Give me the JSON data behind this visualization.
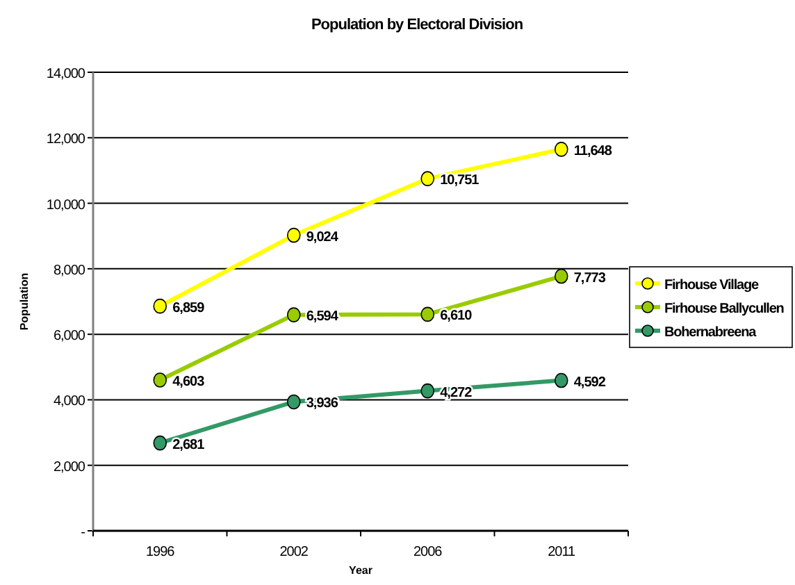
{
  "chart_data": {
    "type": "line",
    "title": "Population by Electoral Division",
    "xlabel": "Year",
    "ylabel": "Population",
    "categories": [
      "1996",
      "2002",
      "2006",
      "2011"
    ],
    "series": [
      {
        "name": "Firhouse Village",
        "color": "#ffff00",
        "values": [
          6859,
          9024,
          10751,
          11648
        ],
        "value_labels": [
          "6,859",
          "9,024",
          "10,751",
          "11,648"
        ]
      },
      {
        "name": "Firhouse Ballycullen",
        "color": "#99cc00",
        "values": [
          4603,
          6594,
          6610,
          7773
        ],
        "value_labels": [
          "4,603",
          "6,594",
          "6,610",
          "7,773"
        ]
      },
      {
        "name": "Bohernabreena",
        "color": "#339966",
        "values": [
          2681,
          3936,
          4272,
          4592
        ],
        "value_labels": [
          "2,681",
          "3,936",
          "4,272",
          "4,592"
        ]
      }
    ],
    "ylim": [
      0,
      14000
    ],
    "yticks": [
      {
        "value": 0,
        "label": "-"
      },
      {
        "value": 2000,
        "label": "2,000"
      },
      {
        "value": 4000,
        "label": "4,000"
      },
      {
        "value": 6000,
        "label": "6,000"
      },
      {
        "value": 8000,
        "label": "8,000"
      },
      {
        "value": 10000,
        "label": "10,000"
      },
      {
        "value": 12000,
        "label": "12,000"
      },
      {
        "value": 14000,
        "label": "14,000"
      }
    ],
    "grid": "y",
    "legend": "right",
    "marker": "circle",
    "line_style": "solid"
  }
}
